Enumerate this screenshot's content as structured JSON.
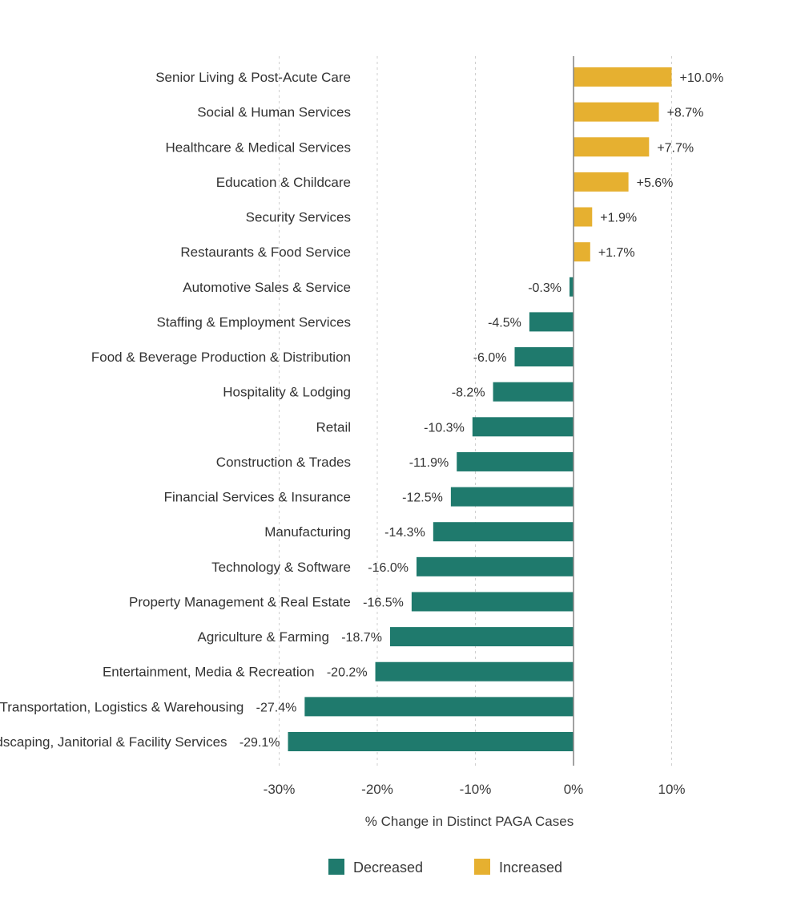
{
  "chart_data": {
    "type": "bar",
    "orientation": "horizontal",
    "categories": [
      "Senior Living & Post-Acute Care",
      "Social & Human Services",
      "Healthcare & Medical Services",
      "Education & Childcare",
      "Security Services",
      "Restaurants & Food Service",
      "Automotive Sales & Service",
      "Staffing & Employment Services",
      "Food & Beverage Production & Distribution",
      "Hospitality & Lodging",
      "Retail",
      "Construction & Trades",
      "Financial Services & Insurance",
      "Manufacturing",
      "Technology & Software",
      "Property Management & Real Estate",
      "Agriculture & Farming",
      "Entertainment, Media & Recreation",
      "Transportation, Logistics & Warehousing",
      "Landscaping, Janitorial & Facility Services"
    ],
    "values": [
      10.0,
      8.7,
      7.7,
      5.6,
      1.9,
      1.7,
      -0.3,
      -4.5,
      -6.0,
      -8.2,
      -10.3,
      -11.9,
      -12.5,
      -14.3,
      -16.0,
      -16.5,
      -18.7,
      -20.2,
      -27.4,
      -29.1
    ],
    "value_labels": [
      "+10.0%",
      "+8.7%",
      "+7.7%",
      "+5.6%",
      "+1.9%",
      "+1.7%",
      "-0.3%",
      "-4.5%",
      "-6.0%",
      "-8.2%",
      "-10.3%",
      "-11.9%",
      "-12.5%",
      "-14.3%",
      "-16.0%",
      "-16.5%",
      "-18.7%",
      "-20.2%",
      "-27.4%",
      "-29.1%"
    ],
    "xlabel": "% Change in Distinct PAGA Cases",
    "xticks": [
      -30,
      -20,
      -10,
      0,
      10
    ],
    "xtick_labels": [
      "-30%",
      "-20%",
      "-10%",
      "0%",
      "10%"
    ],
    "xlim": [
      -30,
      10
    ],
    "grid": true,
    "legend_position": "bottom",
    "legend": [
      {
        "name": "Decreased",
        "color": "#1f7a6d"
      },
      {
        "name": "Increased",
        "color": "#e6b030"
      }
    ],
    "colors": {
      "decreased": "#1f7a6d",
      "increased": "#e6b030"
    }
  }
}
